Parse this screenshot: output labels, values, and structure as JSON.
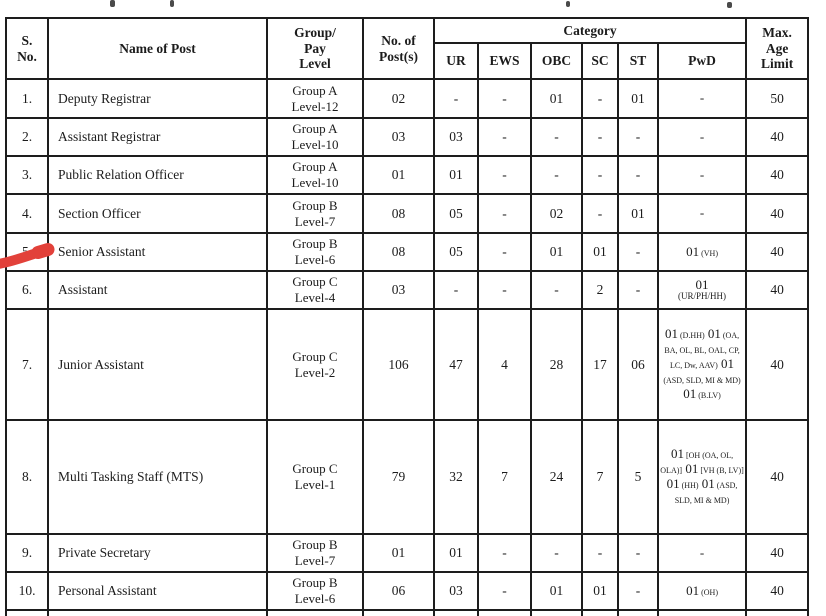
{
  "marker_color": "#e2413a",
  "table": {
    "header": {
      "sno": "S.\nNo.",
      "name": "Name of Post",
      "group": "Group/\nPay\nLevel",
      "posts": "No. of\nPost(s)",
      "category": "Category",
      "cats": [
        "UR",
        "EWS",
        "OBC",
        "SC",
        "ST",
        "PwD"
      ],
      "age": "Max.\nAge\nLimit"
    },
    "rows": [
      {
        "sno": "1.",
        "name": "Deputy Registrar",
        "group": "Group A",
        "level": "Level-12",
        "posts": "02",
        "ur": "-",
        "ews": "-",
        "obc": "01",
        "sc": "-",
        "st": "01",
        "pwd": "-",
        "age": "50"
      },
      {
        "sno": "2.",
        "name": "Assistant Registrar",
        "group": "Group A",
        "level": "Level-10",
        "posts": "03",
        "ur": "03",
        "ews": "-",
        "obc": "-",
        "sc": "-",
        "st": "-",
        "pwd": "-",
        "age": "40"
      },
      {
        "sno": "3.",
        "name": "Public Relation Officer",
        "group": "Group A",
        "level": "Level-10",
        "posts": "01",
        "ur": "01",
        "ews": "-",
        "obc": "-",
        "sc": "-",
        "st": "-",
        "pwd": "-",
        "age": "40"
      },
      {
        "sno": "4.",
        "name": "Section Officer",
        "group": "Group B",
        "level": "Level-7",
        "posts": "08",
        "ur": "05",
        "ews": "-",
        "obc": "02",
        "sc": "-",
        "st": "01",
        "pwd": "-",
        "age": "40"
      },
      {
        "sno": "5.",
        "name": "Senior Assistant",
        "group": "Group B",
        "level": "Level-6",
        "posts": "08",
        "ur": "05",
        "ews": "-",
        "obc": "01",
        "sc": "01",
        "st": "-",
        "pwd": [
          {
            "n": "01",
            "d": "(VH)"
          }
        ],
        "age": "40"
      },
      {
        "sno": "6.",
        "name": "Assistant",
        "group": "Group C",
        "level": "Level-4",
        "posts": "03",
        "ur": "-",
        "ews": "-",
        "obc": "-",
        "sc": "2",
        "st": "-",
        "pwd": [
          {
            "n": "01",
            "d": "(UR/PH/HH)",
            "stack": true
          }
        ],
        "age": "40"
      },
      {
        "sno": "7.",
        "name": "Junior Assistant",
        "group": "Group C",
        "level": "Level-2",
        "posts": "106",
        "ur": "47",
        "ews": "4",
        "obc": "28",
        "sc": "17",
        "st": "06",
        "pwd": [
          {
            "n": "01",
            "d": "(D.HH)"
          },
          {
            "n": "01",
            "d": "(OA, BA, OL, BL, OAL, CP, LC, Dw, AAV)"
          },
          {
            "n": "01",
            "d": "(ASD, SLD, MI & MD)"
          },
          {
            "n": "01",
            "d": "(B.LV)"
          }
        ],
        "age": "40"
      },
      {
        "sno": "8.",
        "name": "Multi Tasking Staff (MTS)",
        "group": "Group C",
        "level": "Level-1",
        "posts": "79",
        "ur": "32",
        "ews": "7",
        "obc": "24",
        "sc": "7",
        "st": "5",
        "pwd": [
          {
            "n": "01",
            "d": "[OH (OA, OL, OLA)]"
          },
          {
            "n": "01",
            "d": "[VH (B, LV)]"
          },
          {
            "n": "01",
            "d": "(HH)"
          },
          {
            "n": "01",
            "d": "(ASD, SLD, MI & MD)"
          }
        ],
        "age": "40"
      },
      {
        "sno": "9.",
        "name": "Private Secretary",
        "group": "Group B",
        "level": "Level-7",
        "posts": "01",
        "ur": "01",
        "ews": "-",
        "obc": "-",
        "sc": "-",
        "st": "-",
        "pwd": "-",
        "age": "40"
      },
      {
        "sno": "10.",
        "name": "Personal Assistant",
        "group": "Group B",
        "level": "Level-6",
        "posts": "06",
        "ur": "03",
        "ews": "-",
        "obc": "01",
        "sc": "01",
        "st": "-",
        "pwd": [
          {
            "n": "01",
            "d": "(OH)"
          }
        ],
        "age": "40"
      },
      {
        "sno": "",
        "name": "",
        "group": "",
        "level": "",
        "posts": "",
        "ur": "",
        "ews": "",
        "obc": "",
        "sc": "",
        "st": "",
        "pwd": "",
        "age": "",
        "partial": true
      }
    ]
  }
}
